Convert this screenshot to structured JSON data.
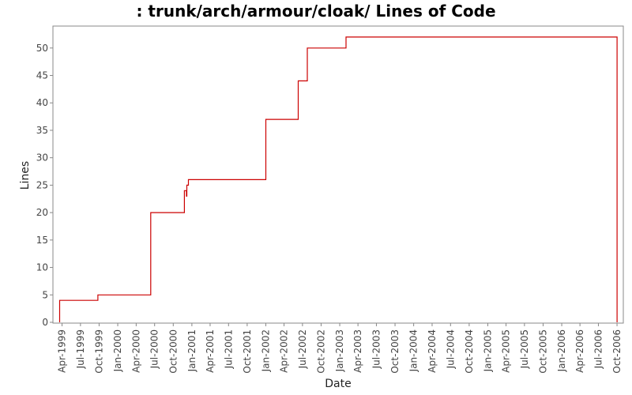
{
  "chart_data": {
    "type": "line",
    "title": ": trunk/arch/armour/cloak/ Lines of Code",
    "xlabel": "Date",
    "ylabel": "Lines",
    "xlim": [
      "1999-02-15",
      "2006-11-01"
    ],
    "ylim": [
      0,
      54
    ],
    "yticks": [
      0,
      5,
      10,
      15,
      20,
      25,
      30,
      35,
      40,
      45,
      50
    ],
    "xticks": [
      {
        "date": "1999-04-01",
        "label": "Apr-1999"
      },
      {
        "date": "1999-07-01",
        "label": "Jul-1999"
      },
      {
        "date": "1999-10-01",
        "label": "Oct-1999"
      },
      {
        "date": "2000-01-01",
        "label": "Jan-2000"
      },
      {
        "date": "2000-04-01",
        "label": "Apr-2000"
      },
      {
        "date": "2000-07-01",
        "label": "Jul-2000"
      },
      {
        "date": "2000-10-01",
        "label": "Oct-2000"
      },
      {
        "date": "2001-01-01",
        "label": "Jan-2001"
      },
      {
        "date": "2001-04-01",
        "label": "Apr-2001"
      },
      {
        "date": "2001-07-01",
        "label": "Jul-2001"
      },
      {
        "date": "2001-10-01",
        "label": "Oct-2001"
      },
      {
        "date": "2002-01-01",
        "label": "Jan-2002"
      },
      {
        "date": "2002-04-01",
        "label": "Apr-2002"
      },
      {
        "date": "2002-07-01",
        "label": "Jul-2002"
      },
      {
        "date": "2002-10-01",
        "label": "Oct-2002"
      },
      {
        "date": "2003-01-01",
        "label": "Jan-2003"
      },
      {
        "date": "2003-04-01",
        "label": "Apr-2003"
      },
      {
        "date": "2003-07-01",
        "label": "Jul-2003"
      },
      {
        "date": "2003-10-01",
        "label": "Oct-2003"
      },
      {
        "date": "2004-01-01",
        "label": "Jan-2004"
      },
      {
        "date": "2004-04-01",
        "label": "Apr-2004"
      },
      {
        "date": "2004-07-01",
        "label": "Jul-2004"
      },
      {
        "date": "2004-10-01",
        "label": "Oct-2004"
      },
      {
        "date": "2005-01-01",
        "label": "Jan-2005"
      },
      {
        "date": "2005-04-01",
        "label": "Apr-2005"
      },
      {
        "date": "2005-07-01",
        "label": "Jul-2005"
      },
      {
        "date": "2005-10-01",
        "label": "Oct-2005"
      },
      {
        "date": "2006-01-01",
        "label": "Jan-2006"
      },
      {
        "date": "2006-04-01",
        "label": "Apr-2006"
      },
      {
        "date": "2006-07-01",
        "label": "Jul-2006"
      },
      {
        "date": "2006-10-01",
        "label": "Oct-2006"
      }
    ],
    "grid": false,
    "legend": "none",
    "line_color": "#cc0000",
    "step": true,
    "series": [
      {
        "points": [
          {
            "date": "1999-03-20",
            "value": 0
          },
          {
            "date": "1999-03-20",
            "value": 4
          },
          {
            "date": "1999-09-25",
            "value": 4
          },
          {
            "date": "1999-09-25",
            "value": 5
          },
          {
            "date": "2000-06-12",
            "value": 5
          },
          {
            "date": "2000-06-12",
            "value": 20
          },
          {
            "date": "2000-11-25",
            "value": 20
          },
          {
            "date": "2000-11-25",
            "value": 24
          },
          {
            "date": "2000-12-05",
            "value": 24
          },
          {
            "date": "2000-12-05",
            "value": 23
          },
          {
            "date": "2000-12-07",
            "value": 23
          },
          {
            "date": "2000-12-07",
            "value": 25
          },
          {
            "date": "2000-12-15",
            "value": 25
          },
          {
            "date": "2000-12-15",
            "value": 26
          },
          {
            "date": "2002-01-01",
            "value": 26
          },
          {
            "date": "2002-01-01",
            "value": 37
          },
          {
            "date": "2002-06-10",
            "value": 37
          },
          {
            "date": "2002-06-10",
            "value": 44
          },
          {
            "date": "2002-07-25",
            "value": 44
          },
          {
            "date": "2002-07-25",
            "value": 50
          },
          {
            "date": "2003-02-01",
            "value": 50
          },
          {
            "date": "2003-02-01",
            "value": 52
          },
          {
            "date": "2006-10-01",
            "value": 52
          },
          {
            "date": "2006-10-01",
            "value": 0
          }
        ]
      }
    ]
  }
}
